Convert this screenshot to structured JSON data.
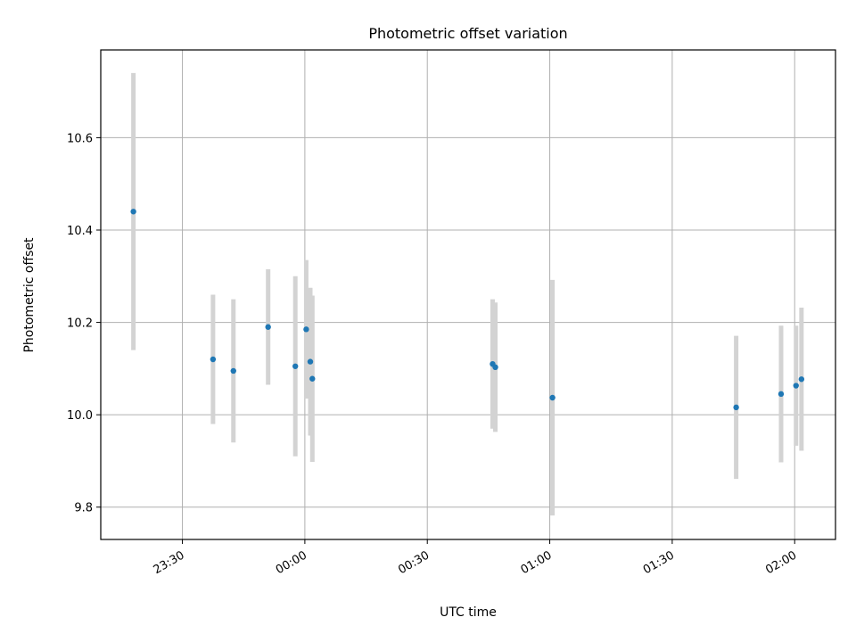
{
  "chart_data": {
    "type": "scatter",
    "title": "Photometric offset variation",
    "xlabel": "UTC time",
    "ylabel": "Photometric offset",
    "x_axis_type": "time",
    "xlim": [
      "23:10",
      "02:10"
    ],
    "ylim": [
      9.73,
      10.79
    ],
    "x_ticks": [
      "23:30",
      "00:00",
      "00:30",
      "01:00",
      "01:30",
      "02:00"
    ],
    "y_ticks": [
      "9.8",
      "10.0",
      "10.2",
      "10.4",
      "10.6"
    ],
    "grid": true,
    "point_color": "#1f77b4",
    "errorbar_color": "#d3d3d3",
    "points": [
      {
        "time": "23:18:00",
        "value": 10.44,
        "err_low": 0.3,
        "err_high": 0.3
      },
      {
        "time": "23:37:30",
        "value": 10.12,
        "err_low": 0.14,
        "err_high": 0.14
      },
      {
        "time": "23:42:30",
        "value": 10.095,
        "err_low": 0.155,
        "err_high": 0.155
      },
      {
        "time": "23:51:00",
        "value": 10.19,
        "err_low": 0.125,
        "err_high": 0.125
      },
      {
        "time": "23:57:40",
        "value": 10.105,
        "err_low": 0.195,
        "err_high": 0.195
      },
      {
        "time": "00:00:20",
        "value": 10.185,
        "err_low": 0.15,
        "err_high": 0.15
      },
      {
        "time": "00:01:20",
        "value": 10.115,
        "err_low": 0.16,
        "err_high": 0.16
      },
      {
        "time": "00:01:50",
        "value": 10.078,
        "err_low": 0.18,
        "err_high": 0.18
      },
      {
        "time": "00:46:00",
        "value": 10.11,
        "err_low": 0.14,
        "err_high": 0.14
      },
      {
        "time": "00:46:40",
        "value": 10.103,
        "err_low": 0.14,
        "err_high": 0.14
      },
      {
        "time": "01:00:40",
        "value": 10.037,
        "err_low": 0.255,
        "err_high": 0.255
      },
      {
        "time": "01:45:40",
        "value": 10.016,
        "err_low": 0.155,
        "err_high": 0.155
      },
      {
        "time": "01:56:40",
        "value": 10.045,
        "err_low": 0.148,
        "err_high": 0.148
      },
      {
        "time": "02:00:20",
        "value": 10.063,
        "err_low": 0.13,
        "err_high": 0.13
      },
      {
        "time": "02:01:40",
        "value": 10.077,
        "err_low": 0.155,
        "err_high": 0.155
      }
    ]
  }
}
